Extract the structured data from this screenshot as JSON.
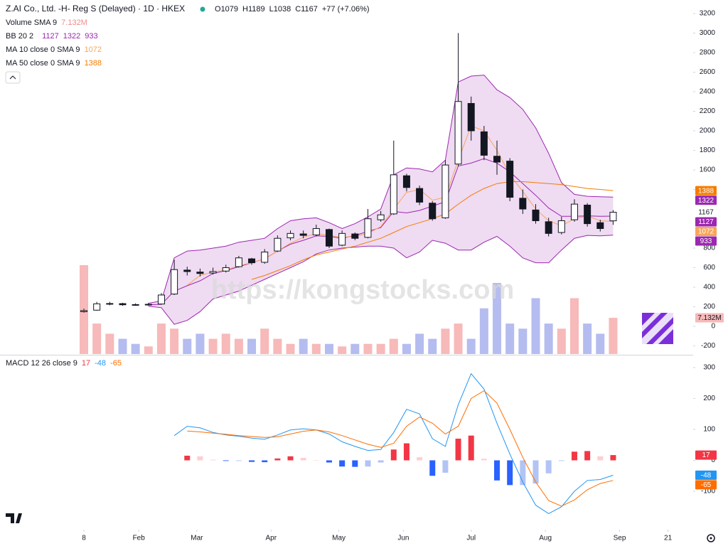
{
  "header": {
    "title": "Z.AI Co., Ltd. -H- Reg S (Delayed) · 1D · HKEX",
    "ohlc_labels": [
      "O",
      "H",
      "L",
      "C"
    ],
    "change_text": "+77 (+7.06%)"
  },
  "watermark": "https://kongstocks.com",
  "chart_data": [
    {
      "type": "candlestick",
      "x": [
        0,
        4,
        8,
        12,
        16,
        20,
        24,
        28,
        32,
        36,
        40,
        44,
        48,
        52,
        56,
        60,
        64,
        68,
        72,
        76,
        80,
        84,
        88,
        92,
        96,
        100,
        104,
        108,
        112,
        116,
        120,
        124,
        128,
        132,
        136,
        140,
        144,
        148,
        152,
        156,
        160,
        164
      ],
      "open": [
        150,
        165,
        228,
        232,
        222,
        218,
        228,
        330,
        575,
        555,
        545,
        565,
        610,
        690,
        655,
        770,
        905,
        945,
        935,
        990,
        830,
        945,
        910,
        1090,
        1150,
        1540,
        1410,
        1260,
        1110,
        1660,
        2280,
        1990,
        1740,
        1690,
        1310,
        1190,
        1070,
        960,
        1090,
        1240,
        1060,
        1079
      ],
      "high": [
        180,
        250,
        250,
        240,
        235,
        240,
        340,
        680,
        610,
        590,
        600,
        630,
        720,
        700,
        790,
        930,
        980,
        980,
        1040,
        1000,
        980,
        960,
        1200,
        1180,
        1900,
        1560,
        1440,
        1280,
        1700,
        3000,
        2350,
        2050,
        1900,
        1720,
        1400,
        1250,
        1110,
        1120,
        1300,
        1260,
        1090,
        1189
      ],
      "low": [
        140,
        160,
        215,
        210,
        210,
        210,
        220,
        320,
        520,
        510,
        530,
        550,
        600,
        630,
        640,
        760,
        880,
        900,
        920,
        800,
        820,
        880,
        900,
        1070,
        1140,
        1380,
        1240,
        1080,
        1100,
        1640,
        1900,
        1700,
        1550,
        1280,
        1150,
        1050,
        920,
        940,
        1070,
        1020,
        970,
        1038
      ],
      "close": [
        160,
        230,
        233,
        220,
        220,
        225,
        320,
        580,
        560,
        540,
        560,
        600,
        700,
        650,
        760,
        900,
        950,
        930,
        1000,
        820,
        950,
        900,
        1100,
        1140,
        1550,
        1420,
        1270,
        1100,
        1650,
        2300,
        2000,
        1750,
        1680,
        1320,
        1200,
        1080,
        950,
        1080,
        1250,
        1050,
        1000,
        1167
      ],
      "up_color": "#ffffff",
      "down_color": "#131722",
      "xlim": [
        -26,
        191
      ],
      "xticks": [
        {
          "value": 0,
          "label": "8"
        },
        {
          "value": 17,
          "label": "Feb"
        },
        {
          "value": 35,
          "label": "Mar"
        },
        {
          "value": 58,
          "label": "Apr"
        },
        {
          "value": 79,
          "label": "May"
        },
        {
          "value": 99,
          "label": "Jun"
        },
        {
          "value": 120,
          "label": "Jul"
        },
        {
          "value": 143,
          "label": "Aug"
        },
        {
          "value": 166,
          "label": "Sep"
        },
        {
          "value": 181,
          "label": "21"
        }
      ],
      "ylim": [
        -284,
        3302
      ],
      "yticks": [
        -200,
        0,
        200,
        400,
        600,
        800,
        1400,
        1600,
        1800,
        2000,
        2200,
        2400,
        2600,
        2800,
        3000,
        3200
      ],
      "indicators": [
        {
          "label": "BB 20 2",
          "fill": "#e1bee7",
          "series": [
            {
              "color": "#9c27b0",
              "values": [
                null,
                null,
                null,
                null,
                null,
                220,
                225,
                360,
                415,
                465,
                540,
                570,
                610,
                650,
                690,
                770,
                840,
                880,
                925,
                920,
                900,
                930,
                970,
                1010,
                1175,
                1160,
                1185,
                1230,
                1275,
                1640,
                1670,
                1715,
                1670,
                1580,
                1460,
                1340,
                1210,
                1125,
                1125,
                1130,
                1125,
                1127
              ]
            },
            {
              "color": "#9c27b0",
              "values": [
                null,
                null,
                null,
                null,
                null,
                235,
                260,
                700,
                770,
                780,
                800,
                820,
                860,
                880,
                900,
                1000,
                1080,
                1100,
                1110,
                1060,
                1000,
                1050,
                1120,
                1200,
                1550,
                1620,
                1610,
                1580,
                1700,
                2500,
                2560,
                2570,
                2420,
                2340,
                2220,
                2030,
                1770,
                1470,
                1350,
                1330,
                1325,
                1322
              ]
            },
            {
              "color": "#9c27b0",
              "values": [
                null,
                null,
                null,
                null,
                null,
                205,
                190,
                20,
                60,
                150,
                280,
                320,
                360,
                420,
                480,
                540,
                600,
                660,
                740,
                780,
                800,
                810,
                820,
                820,
                800,
                700,
                760,
                880,
                850,
                780,
                780,
                860,
                920,
                820,
                700,
                650,
                650,
                780,
                900,
                930,
                925,
                933
              ]
            }
          ]
        },
        {
          "label": "MA 10 close 0 SMA 9",
          "color": "#f9a55a",
          "values": [
            null,
            null,
            null,
            null,
            null,
            null,
            null,
            null,
            420,
            520,
            555,
            575,
            620,
            650,
            690,
            770,
            850,
            910,
            950,
            930,
            910,
            920,
            950,
            1020,
            1200,
            1370,
            1400,
            1290,
            1320,
            1700,
            2050,
            2000,
            1800,
            1550,
            1380,
            1200,
            1080,
            1030,
            1100,
            1130,
            1080,
            1072
          ]
        },
        {
          "label": "MA 50 close 0 SMA 9",
          "color": "#f57c00",
          "values": [
            null,
            null,
            null,
            null,
            null,
            null,
            null,
            null,
            null,
            null,
            null,
            null,
            null,
            480,
            520,
            570,
            620,
            680,
            730,
            760,
            790,
            820,
            860,
            900,
            960,
            1020,
            1060,
            1100,
            1150,
            1250,
            1340,
            1410,
            1460,
            1480,
            1480,
            1470,
            1460,
            1450,
            1430,
            1410,
            1400,
            1388
          ]
        }
      ]
    },
    {
      "type": "volume",
      "label": "Volume SMA 9",
      "sma": 7.132,
      "sma_label": "7.132M",
      "sma_color": "#f28b8b",
      "values": [
        17.5,
        6,
        4,
        3,
        2,
        1.5,
        6,
        5,
        3,
        4,
        3,
        4,
        3,
        3,
        5,
        3,
        2,
        3,
        2,
        2,
        1.5,
        2,
        2,
        2,
        3,
        2,
        4,
        3,
        5,
        6,
        3,
        9,
        14,
        6,
        5,
        11,
        6,
        5,
        11,
        6,
        4,
        7.132
      ],
      "ylim": [
        0,
        69
      ],
      "up_color": "#f7b9b9",
      "down_color": "#b5bcef"
    },
    {
      "type": "macd",
      "label": "MACD 12 26 close 9",
      "x": [
        28,
        32,
        36,
        40,
        44,
        48,
        52,
        56,
        60,
        64,
        68,
        72,
        76,
        80,
        84,
        88,
        92,
        96,
        100,
        104,
        108,
        112,
        116,
        120,
        124,
        128,
        132,
        136,
        140,
        144,
        148,
        152,
        156,
        160,
        164
      ],
      "histogram": {
        "values": [
          null,
          15,
          13,
          2,
          -2,
          -2,
          -5,
          -6,
          6,
          13,
          8,
          0,
          -7,
          -20,
          -21,
          -20,
          -7,
          35,
          55,
          10,
          -50,
          -40,
          70,
          80,
          5,
          -65,
          -80,
          -80,
          -75,
          -42,
          -2,
          28,
          30,
          13,
          17
        ],
        "colors": {
          "pos_rise": "#f23645",
          "pos_fall": "#ffcdd2",
          "neg_fall": "#2962ff",
          "neg_rise": "#b2c3f5"
        }
      },
      "series": [
        {
          "color": "#2196f3",
          "values": [
            80,
            110,
            105,
            90,
            82,
            78,
            72,
            68,
            82,
            98,
            102,
            98,
            85,
            60,
            45,
            32,
            35,
            90,
            165,
            150,
            70,
            45,
            180,
            280,
            230,
            120,
            20,
            -70,
            -145,
            -172,
            -150,
            -100,
            -65,
            -62,
            -48
          ]
        },
        {
          "color": "#ff6d00",
          "values": [
            null,
            95,
            92,
            88,
            84,
            80,
            77,
            74,
            76,
            85,
            94,
            98,
            92,
            80,
            66,
            52,
            42,
            55,
            110,
            140,
            120,
            85,
            110,
            200,
            225,
            185,
            100,
            10,
            -70,
            -130,
            -148,
            -128,
            -95,
            -75,
            -65
          ]
        }
      ],
      "ylim": [
        -224,
        332
      ],
      "yticks": [
        -100,
        0,
        100,
        200,
        300
      ]
    }
  ]
}
